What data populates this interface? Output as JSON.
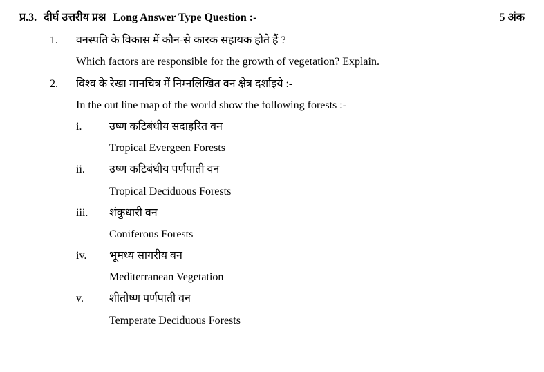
{
  "header": {
    "qnum": "प्र.3.",
    "title_hi": "दीर्घ उत्तरीय प्रश्न",
    "title_en": "Long Answer Type Question :-",
    "marks": "5 अंक"
  },
  "questions": [
    {
      "num": "1.",
      "hi": "वनस्पति के विकास में कौन-से कारक सहायक होते हैं ?",
      "en": "Which factors are responsible for the growth of vegetation? Explain."
    },
    {
      "num": "2.",
      "hi": "विश्व के रेखा मानचित्र में निम्नलिखित वन क्षेत्र दर्शाइये :-",
      "en": "In the out line map of the world show the following forests :-",
      "subs": [
        {
          "num": "i.",
          "hi": "उष्ण कटिबंधीय सदाहरित वन",
          "en": "Tropical Evergeen Forests"
        },
        {
          "num": "ii.",
          "hi": "उष्ण कटिबंधीय पर्णपाती वन",
          "en": "Tropical Deciduous Forests"
        },
        {
          "num": "iii.",
          "hi": "शंकुधारी वन",
          "en": "Coniferous Forests"
        },
        {
          "num": "iv.",
          "hi": "भूमध्य सागरीय वन",
          "en": "Mediterranean Vegetation"
        },
        {
          "num": "v.",
          "hi": "शीतोष्ण पर्णपाती वन",
          "en": "Temperate Deciduous Forests"
        }
      ]
    }
  ]
}
